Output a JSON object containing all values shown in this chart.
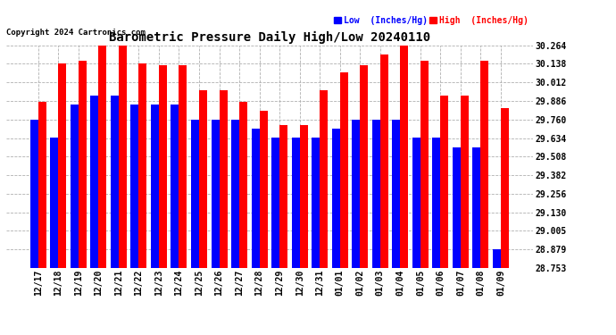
{
  "title": "Barometric Pressure Daily High/Low 20240110",
  "copyright": "Copyright 2024 Cartronics.com",
  "legend_low": "Low  (Inches/Hg)",
  "legend_high": "High  (Inches/Hg)",
  "dates": [
    "12/17",
    "12/18",
    "12/19",
    "12/20",
    "12/21",
    "12/22",
    "12/23",
    "12/24",
    "12/25",
    "12/26",
    "12/27",
    "12/28",
    "12/29",
    "12/30",
    "12/31",
    "01/01",
    "01/02",
    "01/03",
    "01/04",
    "01/05",
    "01/06",
    "01/07",
    "01/08",
    "01/09"
  ],
  "low": [
    29.76,
    29.64,
    29.86,
    29.92,
    29.92,
    29.86,
    29.86,
    29.86,
    29.76,
    29.76,
    29.76,
    29.7,
    29.64,
    29.64,
    29.64,
    29.7,
    29.76,
    29.76,
    29.76,
    29.64,
    29.64,
    29.57,
    29.57,
    28.88
  ],
  "high": [
    29.88,
    30.14,
    30.16,
    30.26,
    30.26,
    30.14,
    30.13,
    30.13,
    29.96,
    29.96,
    29.88,
    29.82,
    29.72,
    29.72,
    29.96,
    30.08,
    30.13,
    30.2,
    30.26,
    30.16,
    29.92,
    29.92,
    30.16,
    29.84
  ],
  "ylim_min": 28.753,
  "ylim_max": 30.264,
  "yticks": [
    28.753,
    28.879,
    29.005,
    29.13,
    29.256,
    29.382,
    29.508,
    29.634,
    29.76,
    29.886,
    30.012,
    30.138,
    30.264
  ],
  "bar_color_low": "#0000ff",
  "bar_color_high": "#ff0000",
  "background_color": "#ffffff",
  "grid_color": "#b0b0b0",
  "title_fontsize": 10,
  "tick_fontsize": 7,
  "bar_width": 0.4
}
